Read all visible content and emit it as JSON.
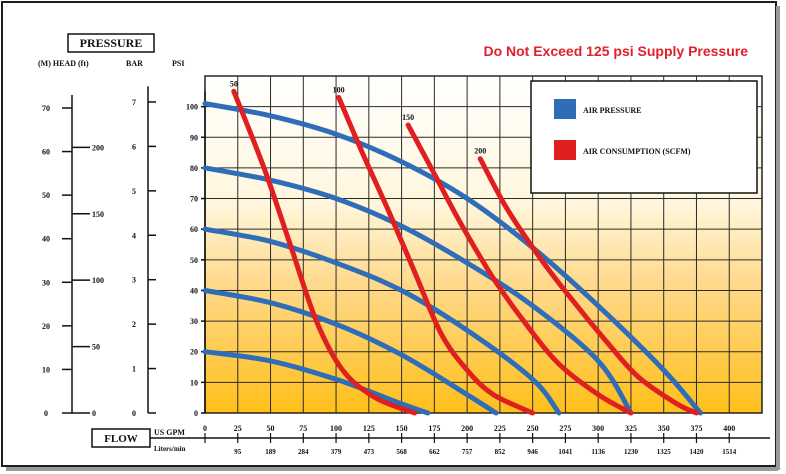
{
  "chart_data": {
    "type": "line",
    "title": "Do Not Exceed 125 psi Supply Pressure",
    "pressure_label": "PRESSURE",
    "flow_label": "FLOW",
    "head_axis": {
      "label": "(M) HEAD (ft)",
      "meters_ticks": [
        0,
        10,
        20,
        30,
        40,
        50,
        60,
        70
      ],
      "feet_ticks": [
        0,
        50,
        100,
        150,
        200
      ]
    },
    "bar_axis": {
      "label": "BAR",
      "ticks": [
        0,
        1,
        2,
        3,
        4,
        5,
        6,
        7
      ]
    },
    "psi_axis": {
      "label": "PSI",
      "ticks": [
        0,
        10,
        20,
        30,
        40,
        50,
        60,
        70,
        80,
        90,
        100
      ]
    },
    "x_axis": {
      "gpm_label": "US GPM",
      "lpm_label": "Liters/min",
      "gpm_ticks": [
        0,
        25,
        50,
        75,
        100,
        125,
        150,
        175,
        200,
        225,
        250,
        275,
        300,
        325,
        350,
        375,
        400
      ],
      "lpm_ticks": [
        95,
        189,
        284,
        379,
        473,
        568,
        662,
        757,
        852,
        946,
        1041,
        1136,
        1230,
        1325,
        1420,
        1514
      ]
    },
    "xlim": [
      0,
      425
    ],
    "ylim": [
      0,
      110
    ],
    "legend": {
      "placement": "top-right",
      "entries": [
        {
          "name": "AIR PRESSURE",
          "color": "#2f6db8"
        },
        {
          "name": "AIR CONSUMPTION (SCFM)",
          "color": "#e02020"
        }
      ]
    },
    "air_pressure_curves": [
      {
        "psi": 100,
        "points": [
          [
            0,
            101
          ],
          [
            50,
            97
          ],
          [
            100,
            91
          ],
          [
            150,
            82
          ],
          [
            200,
            70
          ],
          [
            250,
            54
          ],
          [
            300,
            35
          ],
          [
            350,
            14
          ],
          [
            378,
            0
          ]
        ]
      },
      {
        "psi": 80,
        "points": [
          [
            0,
            80
          ],
          [
            50,
            76
          ],
          [
            100,
            70
          ],
          [
            150,
            61
          ],
          [
            200,
            49
          ],
          [
            250,
            35
          ],
          [
            300,
            17
          ],
          [
            325,
            0
          ]
        ]
      },
      {
        "psi": 60,
        "points": [
          [
            0,
            60
          ],
          [
            50,
            56
          ],
          [
            100,
            49
          ],
          [
            150,
            40
          ],
          [
            200,
            27
          ],
          [
            250,
            11
          ],
          [
            270,
            0
          ]
        ]
      },
      {
        "psi": 40,
        "points": [
          [
            0,
            40
          ],
          [
            50,
            36
          ],
          [
            100,
            29
          ],
          [
            150,
            19
          ],
          [
            200,
            6
          ],
          [
            222,
            0
          ]
        ]
      },
      {
        "psi": 20,
        "points": [
          [
            0,
            20
          ],
          [
            50,
            17
          ],
          [
            100,
            11
          ],
          [
            150,
            3
          ],
          [
            170,
            0
          ]
        ]
      }
    ],
    "air_consumption_curves": [
      {
        "scfm": "50",
        "points": [
          [
            22,
            105
          ],
          [
            45,
            80
          ],
          [
            65,
            55
          ],
          [
            85,
            30
          ],
          [
            105,
            14
          ],
          [
            130,
            5
          ],
          [
            160,
            0
          ]
        ]
      },
      {
        "scfm": "100",
        "points": [
          [
            102,
            103
          ],
          [
            120,
            85
          ],
          [
            140,
            66
          ],
          [
            160,
            46
          ],
          [
            180,
            26
          ],
          [
            200,
            14
          ],
          [
            220,
            6
          ],
          [
            250,
            0
          ]
        ]
      },
      {
        "scfm": "150",
        "points": [
          [
            155,
            94
          ],
          [
            175,
            78
          ],
          [
            195,
            62
          ],
          [
            220,
            44
          ],
          [
            245,
            29
          ],
          [
            270,
            16
          ],
          [
            300,
            6
          ],
          [
            325,
            0
          ]
        ]
      },
      {
        "scfm": "200",
        "points": [
          [
            210,
            83
          ],
          [
            230,
            67
          ],
          [
            255,
            51
          ],
          [
            280,
            37
          ],
          [
            305,
            24
          ],
          [
            330,
            12
          ],
          [
            360,
            3
          ],
          [
            375,
            0
          ]
        ]
      }
    ]
  }
}
